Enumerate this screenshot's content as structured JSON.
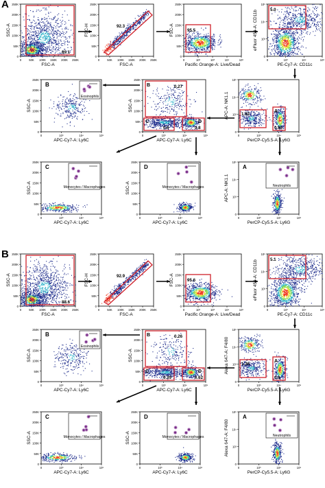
{
  "figure": {
    "sections": [
      {
        "letter": "A",
        "plots": [
          {
            "id": "fsc-ssc",
            "xlabel": "FSC-A",
            "ylabel": "SSC-A",
            "gate": "89.1",
            "yticks": [
              "250K",
              "200K",
              "150K",
              "100K",
              "50K",
              "0"
            ],
            "xticks": [
              "0",
              "50K",
              "100K",
              "150K",
              "200K",
              "250K"
            ]
          },
          {
            "id": "fsc-singlets",
            "xlabel": "FSC-A",
            "ylabel": "FSC-H",
            "gate": "92.3",
            "yticks": [
              "250K",
              "200K",
              "150K",
              "100K",
              "50K",
              "0"
            ],
            "xticks": [
              "0",
              "50K",
              "100K",
              "150K",
              "200K",
              "250K"
            ]
          },
          {
            "id": "live-dead",
            "xlabel": "Pacific Orange-A: Live/Dead",
            "ylabel": "FSC-A",
            "gate": "95.5",
            "yticks": [
              "250K",
              "200K",
              "150K",
              "100K",
              "50K",
              "0"
            ],
            "xticks": [
              "0",
              "10²",
              "10³",
              "10⁴",
              "10⁵"
            ]
          },
          {
            "id": "cd11b-cd11c",
            "xlabel": "PE-Cy7-A: CD11c",
            "ylabel": "eFluor 450-A: CD11b",
            "gate": "5.0",
            "yticks": [
              "10⁵",
              "10⁴",
              "10³",
              "0"
            ],
            "xticks": [
              "0",
              "10³",
              "10⁴",
              "10⁵"
            ]
          },
          {
            "id": "nk11-ly6g",
            "xlabel": "PerCP-Cy5.5-A: Ly6G",
            "ylabel": "APC-A: NK1.1",
            "gate_a": "0.95",
            "gate_b": "1.92",
            "label_a": "A",
            "yticks": [
              "10⁵",
              "10⁴",
              "10³",
              "0"
            ],
            "xticks": [
              "0",
              "10³",
              "10⁴",
              "10⁵"
            ]
          },
          {
            "id": "ssc-ly6c",
            "xlabel": "APC-Cy7-A: Ly6C",
            "ylabel": "SSC-A",
            "gate_b": "0.27",
            "gate_c": "0.6",
            "gate_d": "0.8",
            "label_b": "B",
            "label_c": "C",
            "label_d": "D",
            "yticks": [
              "250K",
              "200K",
              "150K",
              "100K",
              "50K",
              "0"
            ],
            "xticks": [
              "0",
              "10³",
              "10⁴",
              "10⁵"
            ]
          },
          {
            "id": "eos",
            "letter": "B",
            "xlabel": "APC-Cy7-A: Ly6C",
            "ylabel": "SSC-A",
            "cells": "Eosinophils",
            "yticks": [
              "250K",
              "200K",
              "150K",
              "100K",
              "50K",
              "0"
            ],
            "xticks": [
              "0",
              "10³",
              "10⁴",
              "10⁵"
            ]
          },
          {
            "id": "mono-c",
            "letter": "C",
            "xlabel": "APC-Cy7-A: Ly6C",
            "ylabel": "SSC-A",
            "cells": "Monocytes / Macrophages",
            "yticks": [
              "250K",
              "200K",
              "150K",
              "100K",
              "50K",
              "0"
            ],
            "xticks": [
              "0",
              "10³",
              "10⁴",
              "10⁵"
            ]
          },
          {
            "id": "mono-d",
            "letter": "D",
            "xlabel": "APC-Cy7-A: Ly6C",
            "ylabel": "SSC-A",
            "cells": "Monocytes / Macrophages",
            "yticks": [
              "250K",
              "200K",
              "150K",
              "100K",
              "50K",
              "0"
            ],
            "xticks": [
              "0",
              "10³",
              "10⁴",
              "10⁵"
            ]
          },
          {
            "id": "neut",
            "letter": "A",
            "xlabel": "PerCP-Cy5.5-A: Ly6G",
            "ylabel": "APC-A: NK1.1",
            "cells": "Neutrophils",
            "yticks": [
              "10⁵",
              "10⁴",
              "10³",
              "0"
            ],
            "xticks": [
              "0",
              "10³",
              "10⁴",
              "10⁵"
            ]
          }
        ]
      },
      {
        "letter": "B",
        "plots": [
          {
            "id": "fsc-ssc",
            "xlabel": "FSC-A",
            "ylabel": "SSC-A",
            "gate": "88.6",
            "yticks": [
              "250K",
              "200K",
              "150K",
              "100K",
              "50K",
              "0"
            ],
            "xticks": [
              "0",
              "50K",
              "100K",
              "150K",
              "200K",
              "250K"
            ]
          },
          {
            "id": "fsc-singlets",
            "xlabel": "FSC-A",
            "ylabel": "FSC-H",
            "gate": "92.9",
            "yticks": [
              "250K",
              "200K",
              "150K",
              "100K",
              "50K",
              "0"
            ],
            "xticks": [
              "0",
              "50K",
              "100K",
              "150K",
              "200K",
              "250K"
            ]
          },
          {
            "id": "live-dead",
            "xlabel": "Pacific Orange-A: Live/Dead",
            "ylabel": "FSC-A",
            "gate": "95.6",
            "yticks": [
              "250K",
              "200K",
              "150K",
              "100K",
              "50K",
              "0"
            ],
            "xticks": [
              "0",
              "10²",
              "10³",
              "10⁴",
              "10⁵"
            ]
          },
          {
            "id": "cd11b-cd11c",
            "xlabel": "PE-Cy7-A: CD11c",
            "ylabel": "eFluor 450-A: CD11b",
            "gate": "5.1",
            "yticks": [
              "10⁵",
              "10⁴",
              "10³",
              "0"
            ],
            "xticks": [
              "0",
              "10³",
              "10⁴",
              "10⁵"
            ]
          },
          {
            "id": "nk11-ly6g",
            "xlabel": "PerCP-Cy5.5-A: Ly6G",
            "ylabel": "Alexa 647-A: F4/80",
            "gate_a": "0.9",
            "gate_b": "1.36",
            "label_a": "A",
            "yticks": [
              "10⁵",
              "10⁴",
              "10³",
              "0"
            ],
            "xticks": [
              "0",
              "10³",
              "10⁴",
              "10⁵"
            ]
          },
          {
            "id": "ssc-ly6c",
            "xlabel": "APC-Cy7-A: Ly6C",
            "ylabel": "SSC-A",
            "gate_b": "0.26",
            "gate_c": "0.39",
            "gate_d": "0.62",
            "label_b": "B",
            "label_c": "C",
            "label_d": "D",
            "yticks": [
              "250K",
              "200K",
              "150K",
              "100K",
              "50K",
              "0"
            ],
            "xticks": [
              "0",
              "10³",
              "10⁴",
              "10⁵"
            ]
          },
          {
            "id": "eos",
            "letter": "B",
            "xlabel": "APC-Cy7-A: Ly6C",
            "ylabel": "SSC-A",
            "cells": "Eosinophils",
            "yticks": [
              "250K",
              "200K",
              "150K",
              "100K",
              "50K",
              "0"
            ],
            "xticks": [
              "0",
              "10³",
              "10⁴",
              "10⁵"
            ]
          },
          {
            "id": "mono-c",
            "letter": "C",
            "xlabel": "APC-Cy7-A: Ly6C",
            "ylabel": "SSC-A",
            "cells": "Monocytes / Macrophages",
            "yticks": [
              "250K",
              "200K",
              "150K",
              "100K",
              "50K",
              "0"
            ],
            "xticks": [
              "0",
              "10³",
              "10⁴",
              "10⁵"
            ]
          },
          {
            "id": "mono-d",
            "letter": "D",
            "xlabel": "APC-Cy7-A: Ly6C",
            "ylabel": "SSC-A",
            "cells": "Monocytes / Macrophages",
            "yticks": [
              "250K",
              "200K",
              "150K",
              "100K",
              "50K",
              "0"
            ],
            "xticks": [
              "0",
              "10³",
              "10⁴",
              "10⁵"
            ]
          },
          {
            "id": "neut",
            "letter": "A",
            "xlabel": "PerCP-Cy5.5-A: Ly6G",
            "ylabel": "Alexa 647-A: F4/80",
            "cells": "Neutrophils",
            "yticks": [
              "10⁵",
              "10⁴",
              "10³",
              "0"
            ],
            "xticks": [
              "0",
              "10³",
              "10⁴",
              "10⁵"
            ]
          }
        ]
      }
    ],
    "colors": {
      "gate": "#d0202a",
      "arrow": "#000000",
      "density_low": "#1b2a8a",
      "density_mid": "#27b0c8",
      "density_high": "#f0e030",
      "cell_stain": "#7a2f8a"
    }
  }
}
